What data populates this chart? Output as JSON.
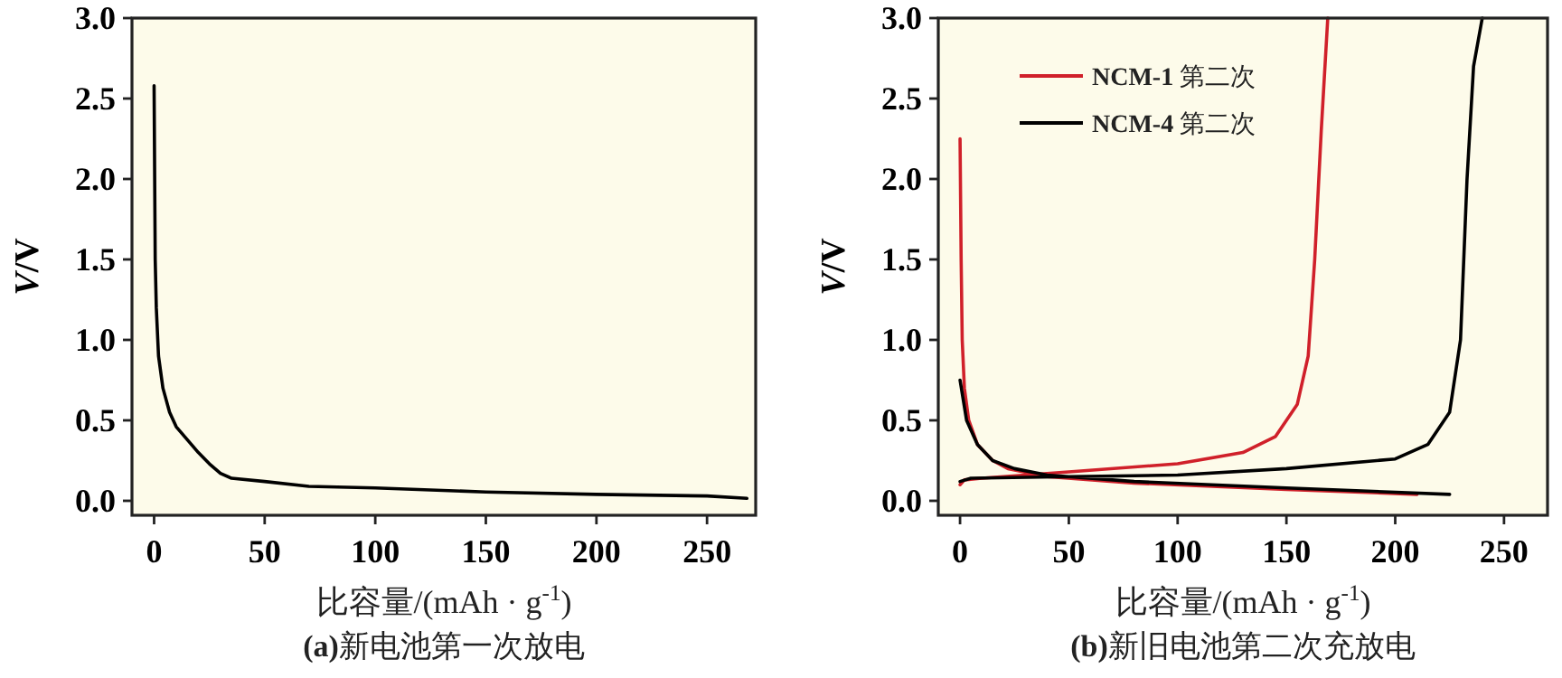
{
  "chart_data": [
    {
      "type": "line",
      "title": "**(a)**新电池第一次放电",
      "xlabel": "比容量/(mAh · g$^{-1}$)",
      "ylabel": "*V*/V",
      "xlim": [
        -10,
        272
      ],
      "ylim": [
        -0.09,
        3.0
      ],
      "xticks": [
        0,
        50,
        100,
        150,
        200,
        250
      ],
      "yticks": [
        {
          "value": 0,
          "label": "0.0"
        },
        {
          "value": 0.5,
          "label": "0.5"
        },
        {
          "value": 1,
          "label": "1.0"
        },
        {
          "value": 1.5,
          "label": "1.5"
        },
        {
          "value": 2,
          "label": "2.0"
        },
        {
          "value": 2.5,
          "label": "2.5"
        },
        {
          "value": 3,
          "label": "3.0"
        }
      ],
      "legend": false,
      "series": [
        {
          "color": "#000000",
          "x": [
            0,
            0.5,
            1,
            2,
            4,
            7,
            10,
            15,
            20,
            25,
            30,
            35,
            50,
            70,
            100,
            150,
            200,
            250,
            268
          ],
          "values": [
            2.58,
            1.5,
            1.2,
            0.9,
            0.7,
            0.55,
            0.46,
            0.38,
            0.3,
            0.23,
            0.17,
            0.14,
            0.12,
            0.09,
            0.08,
            0.055,
            0.04,
            0.03,
            0.015
          ]
        }
      ]
    },
    {
      "type": "line",
      "title": "**(b)**新旧电池第二次充放电",
      "xlabel": "比容量/(mAh · g$^{-1}$)",
      "ylabel": "*V*/V",
      "xlim": [
        -10,
        270
      ],
      "ylim": [
        -0.09,
        3.0
      ],
      "xticks": [
        0,
        50,
        100,
        150,
        200,
        250
      ],
      "yticks": [
        {
          "value": 0,
          "label": "0.0"
        },
        {
          "value": 0.5,
          "label": "0.5"
        },
        {
          "value": 1,
          "label": "1.0"
        },
        {
          "value": 1.5,
          "label": "1.5"
        },
        {
          "value": 2,
          "label": "2.0"
        },
        {
          "value": 2.5,
          "label": "2.5"
        },
        {
          "value": 3,
          "label": "3.0"
        }
      ],
      "legend": "top left",
      "series": [
        {
          "name": "**NCM-1** 第二次",
          "color": "#d0202a",
          "x": [
            0,
            0.5,
            1,
            2,
            4,
            8,
            15,
            22,
            40,
            80,
            150,
            210,
            null,
            0,
            2,
            10,
            50,
            100,
            130,
            145,
            155,
            160,
            163,
            166,
            169
          ],
          "values": [
            2.25,
            1.5,
            1.0,
            0.7,
            0.5,
            0.35,
            0.25,
            0.2,
            0.15,
            0.11,
            0.07,
            0.04,
            null,
            0.1,
            0.13,
            0.14,
            0.18,
            0.23,
            0.3,
            0.4,
            0.6,
            0.9,
            1.5,
            2.3,
            3.0
          ]
        },
        {
          "name": "**NCM-4** 第二次",
          "color": "#000000",
          "x": [
            0,
            3,
            8,
            15,
            25,
            40,
            80,
            150,
            225,
            null,
            0,
            5,
            50,
            100,
            150,
            200,
            215,
            225,
            230,
            233,
            236,
            240
          ],
          "values": [
            0.75,
            0.5,
            0.35,
            0.25,
            0.2,
            0.16,
            0.12,
            0.08,
            0.04,
            null,
            0.12,
            0.14,
            0.15,
            0.16,
            0.2,
            0.26,
            0.35,
            0.55,
            1.0,
            2.0,
            2.7,
            3.0
          ]
        }
      ]
    }
  ]
}
